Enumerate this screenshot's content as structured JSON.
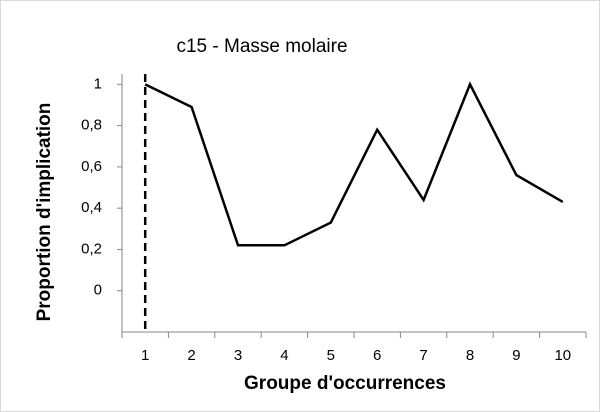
{
  "chart_data": {
    "type": "line",
    "title": "c15 - Masse molaire",
    "x_label": "Groupe d'occurrences",
    "y_label": "Proportion d'implication",
    "categories": [
      "1",
      "2",
      "3",
      "4",
      "5",
      "6",
      "7",
      "8",
      "9",
      "10"
    ],
    "values": [
      1,
      0.89,
      0.22,
      0.22,
      0.33,
      0.78,
      0.44,
      1,
      0.56,
      0.43
    ],
    "color": "#000000",
    "ylim": [
      -0.2,
      1.05
    ],
    "yticks": [
      0,
      {
        "value": 0.2,
        "label": "0,2"
      },
      {
        "value": 0.4,
        "label": "0,4"
      },
      {
        "value": 0.6,
        "label": "0,6"
      },
      {
        "value": 0.8,
        "label": "0,8"
      },
      1
    ],
    "grid": false
  }
}
